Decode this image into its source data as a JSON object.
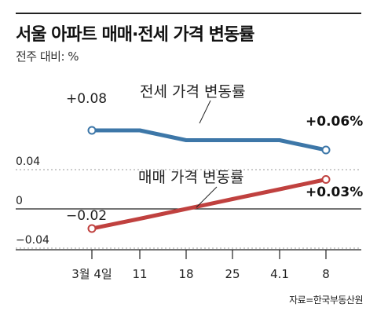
{
  "header": {
    "title": "서울 아파트 매매·전세 가격 변동률",
    "unit_label": "전주 대비: %"
  },
  "source_note": "자료=한국부동산원",
  "chart_data": {
    "type": "line",
    "title": "서울 아파트 매매·전세 가격 변동률",
    "subtitle": "전주 대비: %",
    "categories": [
      "3월 4일",
      "11",
      "18",
      "25",
      "4.1",
      "8"
    ],
    "series": [
      {
        "name": "전세 가격 변동률",
        "values": [
          0.08,
          0.08,
          0.07,
          0.07,
          0.07,
          0.06
        ],
        "color": "#3d77a8",
        "start_label": "+0.08",
        "end_label": "+0.06%"
      },
      {
        "name": "매매 가격 변동률",
        "values": [
          -0.02,
          -0.01,
          0.0,
          0.01,
          0.02,
          0.03
        ],
        "color": "#c0413f",
        "start_label": "−0.02",
        "end_label": "+0.03%"
      }
    ],
    "y_tick_labels": [
      "0.04",
      "0",
      "−0.04"
    ],
    "y_ticks": [
      0.04,
      0,
      -0.04
    ],
    "ylim": [
      -0.04,
      0.09
    ],
    "grid": false,
    "legend": "inline labels"
  }
}
